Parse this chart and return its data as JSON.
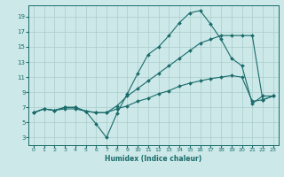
{
  "title": "",
  "xlabel": "Humidex (Indice chaleur)",
  "xlim": [
    -0.5,
    23.5
  ],
  "ylim": [
    2,
    20.5
  ],
  "xticks": [
    0,
    1,
    2,
    3,
    4,
    5,
    6,
    7,
    8,
    9,
    10,
    11,
    12,
    13,
    14,
    15,
    16,
    17,
    18,
    19,
    20,
    21,
    22,
    23
  ],
  "yticks": [
    3,
    5,
    7,
    9,
    11,
    13,
    15,
    17,
    19
  ],
  "bg_color": "#cce8e8",
  "grid_color": "#aacccc",
  "line_color": "#1a6b6b",
  "curve1_x": [
    0,
    1,
    2,
    3,
    4,
    5,
    6,
    7,
    8,
    9,
    10,
    11,
    12,
    13,
    14,
    15,
    16,
    17,
    18,
    19,
    20,
    21,
    22,
    23
  ],
  "curve1_y": [
    6.3,
    6.8,
    6.6,
    7.0,
    7.0,
    6.5,
    4.8,
    3.0,
    6.2,
    8.8,
    11.5,
    14.0,
    15.0,
    16.5,
    18.2,
    19.5,
    19.8,
    18.0,
    16.0,
    13.5,
    12.5,
    7.5,
    8.5,
    8.5
  ],
  "curve2_x": [
    0,
    1,
    2,
    3,
    4,
    5,
    6,
    7,
    8,
    9,
    10,
    11,
    12,
    13,
    14,
    15,
    16,
    17,
    18,
    19,
    20,
    21,
    22,
    23
  ],
  "curve2_y": [
    6.3,
    6.8,
    6.6,
    7.0,
    7.0,
    6.5,
    6.3,
    6.3,
    7.2,
    8.5,
    9.5,
    10.5,
    11.5,
    12.5,
    13.5,
    14.5,
    15.5,
    16.0,
    16.5,
    16.5,
    16.5,
    16.5,
    8.0,
    8.5
  ],
  "curve3_x": [
    0,
    1,
    2,
    3,
    4,
    5,
    6,
    7,
    8,
    9,
    10,
    11,
    12,
    13,
    14,
    15,
    16,
    17,
    18,
    19,
    20,
    21,
    22,
    23
  ],
  "curve3_y": [
    6.3,
    6.8,
    6.6,
    6.8,
    6.8,
    6.5,
    6.3,
    6.3,
    6.8,
    7.2,
    7.8,
    8.2,
    8.8,
    9.2,
    9.8,
    10.2,
    10.5,
    10.8,
    11.0,
    11.2,
    11.0,
    7.8,
    8.0,
    8.5
  ]
}
